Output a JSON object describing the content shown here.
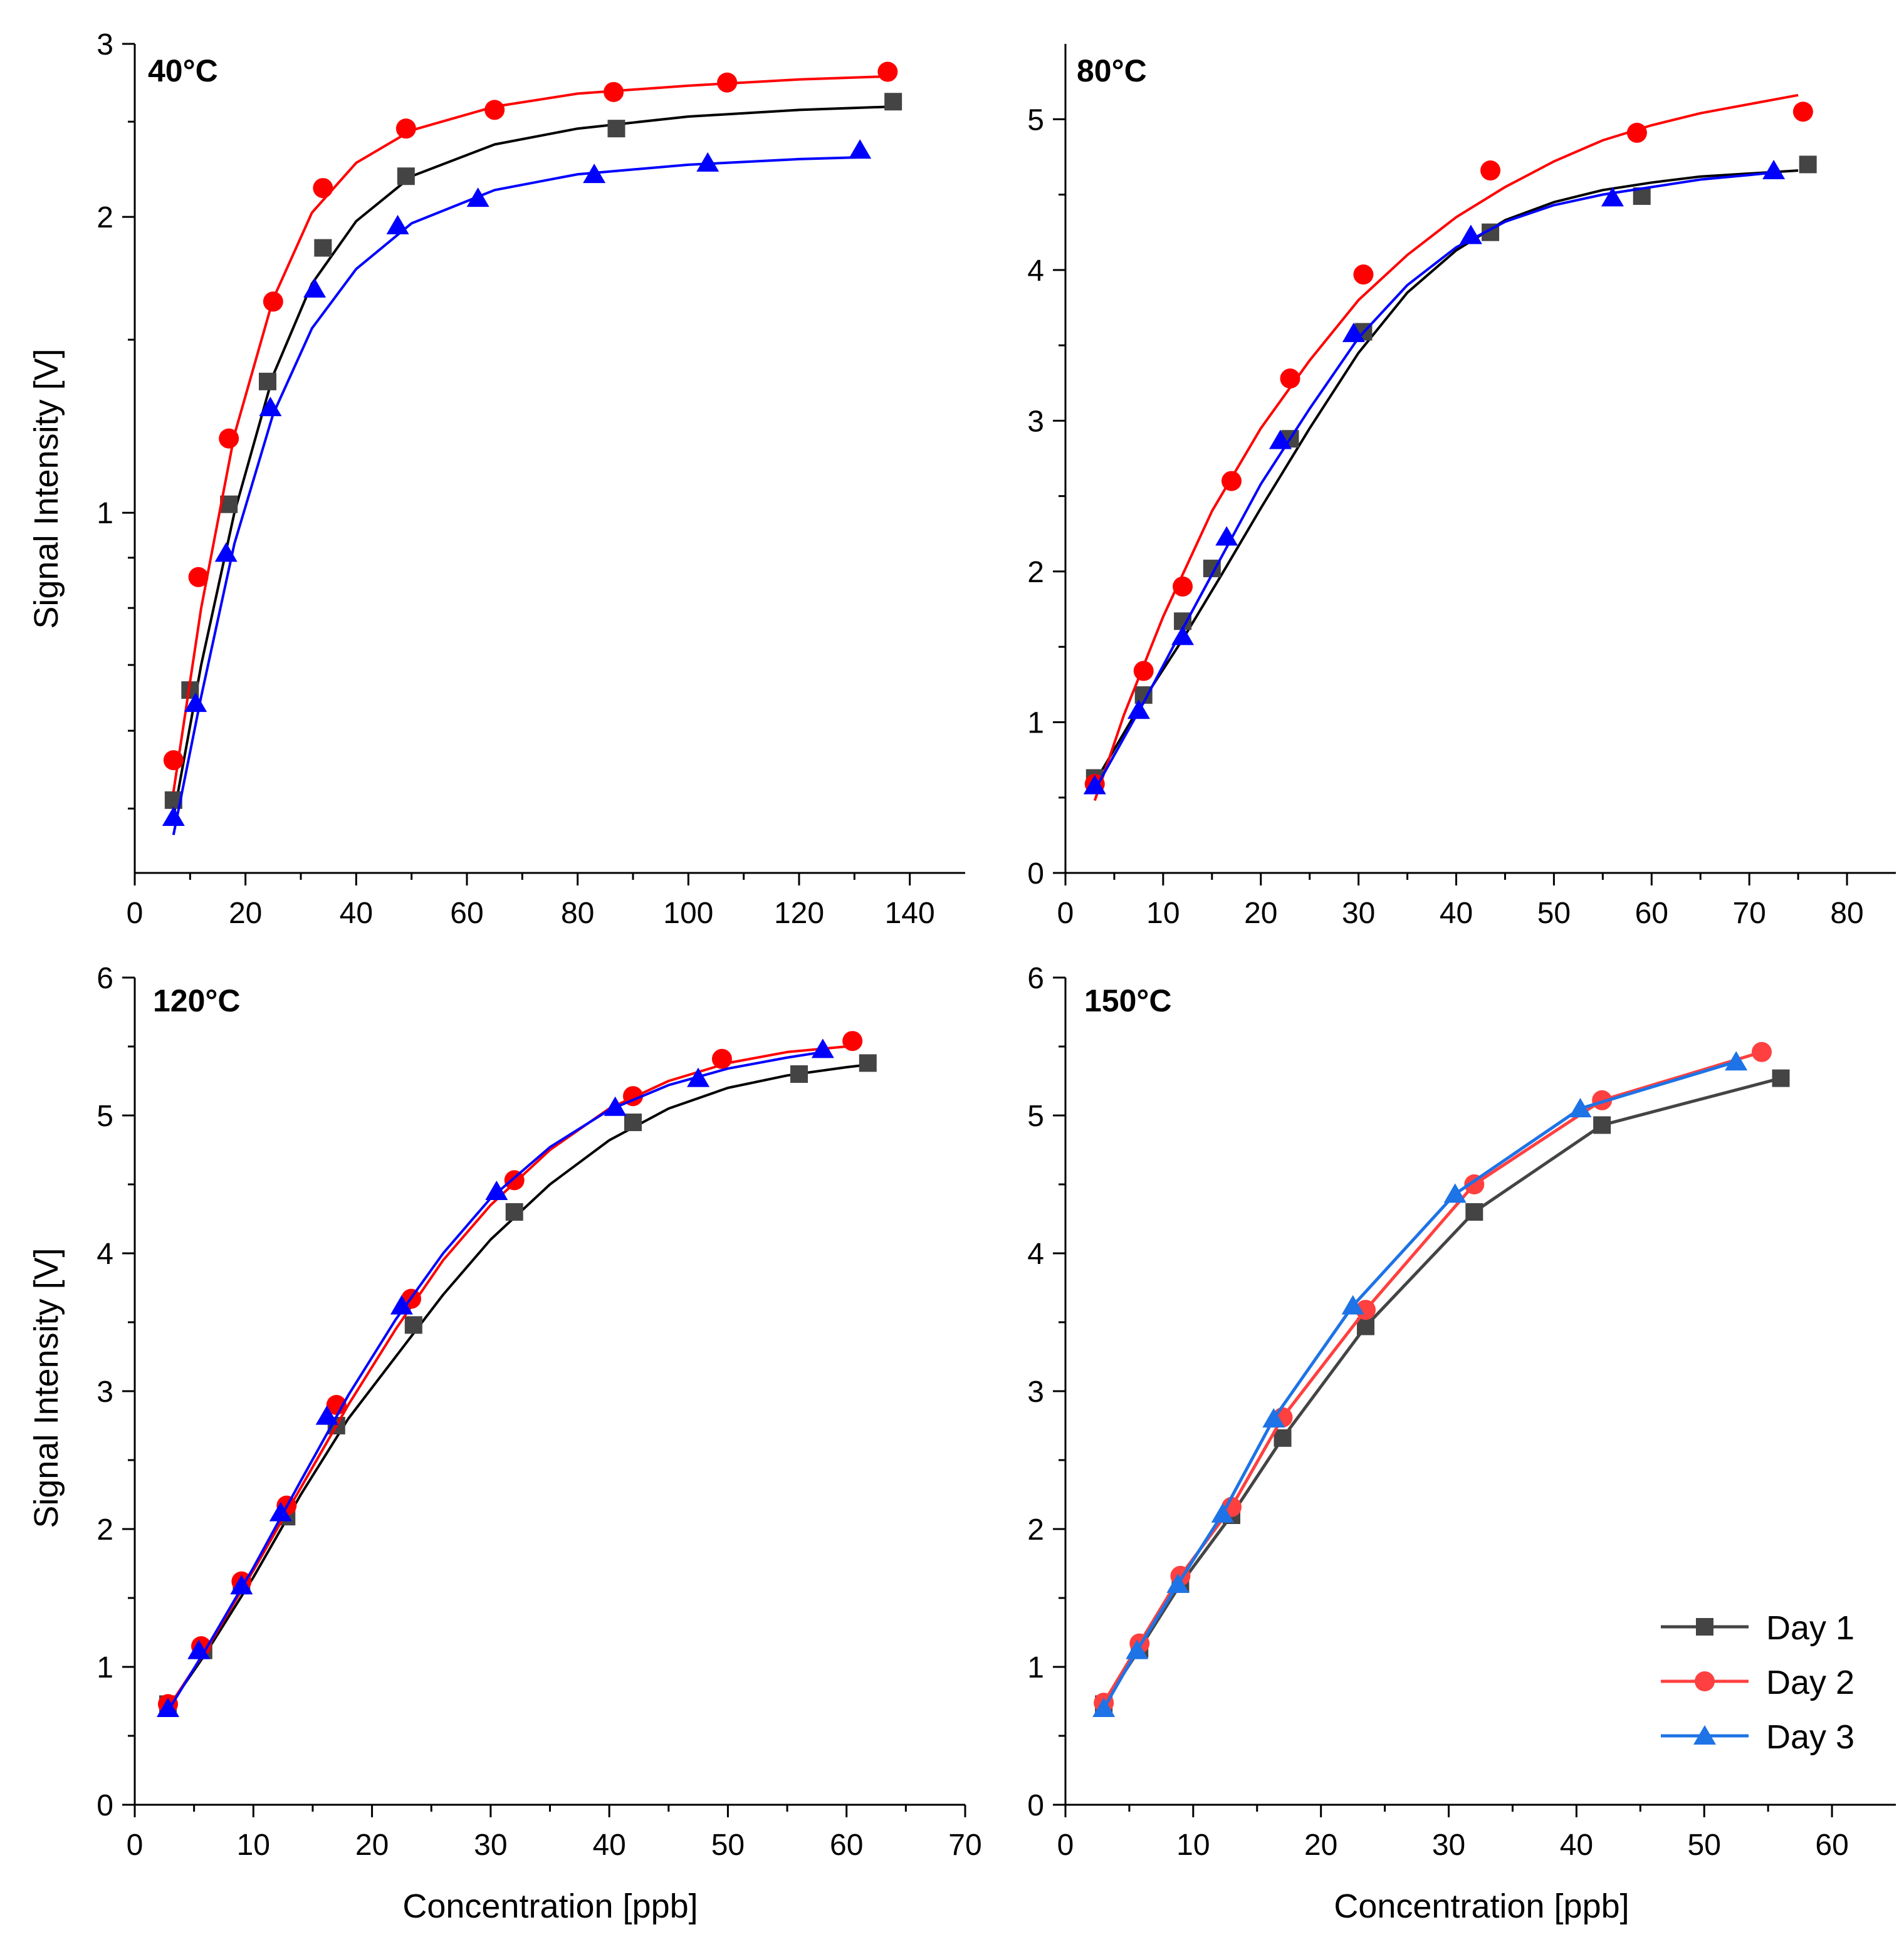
{
  "chart_data": [
    {
      "type": "scatter",
      "panel": "40°C",
      "xlabel": "",
      "ylabel": "Signal Intensity [V]",
      "yscale": "log",
      "xlim": [
        0,
        150
      ],
      "ylim": [
        0.43,
        3
      ],
      "xticks": [
        0,
        20,
        40,
        60,
        80,
        100,
        120,
        140
      ],
      "yticks": [
        1,
        2,
        3
      ],
      "series": [
        {
          "name": "Day 1",
          "color": "#444444",
          "marker": "square",
          "fit_color": "#000000",
          "x": [
            7,
            10,
            17,
            24,
            34,
            49,
            87,
            137
          ],
          "y": [
            0.51,
            0.66,
            1.02,
            1.36,
            1.86,
            2.2,
            2.46,
            2.62
          ],
          "fit": [
            [
              7,
              0.49
            ],
            [
              12,
              0.7
            ],
            [
              18,
              1.0
            ],
            [
              25,
              1.38
            ],
            [
              32,
              1.71
            ],
            [
              40,
              1.98
            ],
            [
              50,
              2.2
            ],
            [
              65,
              2.37
            ],
            [
              80,
              2.46
            ],
            [
              100,
              2.53
            ],
            [
              120,
              2.57
            ],
            [
              137,
              2.59
            ]
          ]
        },
        {
          "name": "Day 2",
          "color": "#ff0000",
          "marker": "circle",
          "fit_color": "#ff0000",
          "x": [
            7,
            11.5,
            17,
            25,
            34,
            49,
            65,
            86.5,
            107,
            136
          ],
          "y": [
            0.56,
            0.86,
            1.19,
            1.64,
            2.14,
            2.46,
            2.57,
            2.68,
            2.74,
            2.81
          ],
          "fit": [
            [
              7,
              0.52
            ],
            [
              12,
              0.8
            ],
            [
              18,
              1.2
            ],
            [
              25,
              1.65
            ],
            [
              32,
              2.02
            ],
            [
              40,
              2.27
            ],
            [
              50,
              2.45
            ],
            [
              65,
              2.59
            ],
            [
              80,
              2.67
            ],
            [
              100,
              2.72
            ],
            [
              120,
              2.76
            ],
            [
              136,
              2.78
            ]
          ]
        },
        {
          "name": "Day 3",
          "color": "#0000ff",
          "marker": "triangle",
          "fit_color": "#0000ff",
          "x": [
            7,
            11,
            16.5,
            24.5,
            32.5,
            47.5,
            62,
            83,
            103.5,
            131
          ],
          "y": [
            0.49,
            0.64,
            0.91,
            1.28,
            1.69,
            1.96,
            2.09,
            2.21,
            2.27,
            2.34
          ],
          "fit": [
            [
              7,
              0.47
            ],
            [
              12,
              0.65
            ],
            [
              18,
              0.93
            ],
            [
              25,
              1.26
            ],
            [
              32,
              1.54
            ],
            [
              40,
              1.77
            ],
            [
              50,
              1.97
            ],
            [
              65,
              2.13
            ],
            [
              80,
              2.21
            ],
            [
              100,
              2.26
            ],
            [
              120,
              2.29
            ],
            [
              131,
              2.3
            ]
          ]
        }
      ]
    },
    {
      "type": "scatter",
      "panel": "80°C",
      "xlabel": "",
      "ylabel": "",
      "xlim": [
        0,
        85
      ],
      "ylim": [
        0,
        5.5
      ],
      "xticks": [
        0,
        10,
        20,
        30,
        40,
        50,
        60,
        70,
        80
      ],
      "yticks": [
        0,
        1,
        2,
        3,
        4,
        5
      ],
      "series": [
        {
          "name": "Day 1",
          "color": "#444444",
          "marker": "square",
          "fit_color": "#000000",
          "x": [
            3,
            8,
            12,
            15,
            23,
            30.5,
            43.5,
            59,
            76
          ],
          "y": [
            0.63,
            1.18,
            1.67,
            2.02,
            2.88,
            3.59,
            4.25,
            4.49,
            4.7
          ],
          "fit": [
            [
              3,
              0.6
            ],
            [
              8,
              1.15
            ],
            [
              12,
              1.55
            ],
            [
              16,
              1.98
            ],
            [
              20,
              2.42
            ],
            [
              25,
              2.95
            ],
            [
              30,
              3.45
            ],
            [
              35,
              3.85
            ],
            [
              40,
              4.13
            ],
            [
              45,
              4.33
            ],
            [
              50,
              4.45
            ],
            [
              55,
              4.53
            ],
            [
              60,
              4.58
            ],
            [
              65,
              4.62
            ],
            [
              70,
              4.64
            ],
            [
              75,
              4.66
            ]
          ]
        },
        {
          "name": "Day 2",
          "color": "#ff0000",
          "marker": "circle",
          "fit_color": "#ff0000",
          "x": [
            3,
            8,
            12,
            17,
            23,
            30.5,
            43.5,
            58.5,
            75.5
          ],
          "y": [
            0.59,
            1.34,
            1.9,
            2.6,
            3.28,
            3.97,
            4.66,
            4.91,
            5.05
          ],
          "fit": [
            [
              3,
              0.48
            ],
            [
              6,
              1.05
            ],
            [
              10,
              1.7
            ],
            [
              15,
              2.4
            ],
            [
              20,
              2.95
            ],
            [
              25,
              3.4
            ],
            [
              30,
              3.8
            ],
            [
              35,
              4.1
            ],
            [
              40,
              4.35
            ],
            [
              45,
              4.55
            ],
            [
              50,
              4.72
            ],
            [
              55,
              4.86
            ],
            [
              60,
              4.96
            ],
            [
              65,
              5.04
            ],
            [
              70,
              5.1
            ],
            [
              75,
              5.16
            ]
          ]
        },
        {
          "name": "Day 3",
          "color": "#0000ff",
          "marker": "triangle",
          "fit_color": "#0000ff",
          "x": [
            3,
            7.5,
            12,
            16.5,
            22,
            29.5,
            41.5,
            56,
            72.5
          ],
          "y": [
            0.58,
            1.08,
            1.57,
            2.23,
            2.87,
            3.58,
            4.23,
            4.48,
            4.66
          ],
          "fit": [
            [
              3,
              0.55
            ],
            [
              8,
              1.13
            ],
            [
              12,
              1.62
            ],
            [
              16,
              2.1
            ],
            [
              20,
              2.58
            ],
            [
              25,
              3.08
            ],
            [
              30,
              3.55
            ],
            [
              35,
              3.9
            ],
            [
              40,
              4.15
            ],
            [
              45,
              4.32
            ],
            [
              50,
              4.43
            ],
            [
              55,
              4.5
            ],
            [
              60,
              4.55
            ],
            [
              65,
              4.6
            ],
            [
              70,
              4.63
            ],
            [
              73,
              4.65
            ]
          ]
        }
      ]
    },
    {
      "type": "scatter",
      "panel": "120°C",
      "xlabel": "Concentration [ppb]",
      "ylabel": "Signal Intensity [V]",
      "xlim": [
        0,
        70
      ],
      "ylim": [
        0,
        6
      ],
      "xticks": [
        0,
        10,
        20,
        30,
        40,
        50,
        60,
        70
      ],
      "yticks": [
        0,
        1,
        2,
        3,
        4,
        5,
        6
      ],
      "series": [
        {
          "name": "Day 1",
          "color": "#444444",
          "marker": "square",
          "fit_color": "#000000",
          "x": [
            2.8,
            5.8,
            9,
            12.8,
            17,
            23.5,
            32,
            42,
            56,
            61.8
          ],
          "y": [
            0.73,
            1.12,
            1.59,
            2.09,
            2.75,
            3.48,
            4.3,
            4.95,
            5.3,
            5.38
          ],
          "fit": [
            [
              2.8,
              0.7
            ],
            [
              6,
              1.1
            ],
            [
              10,
              1.65
            ],
            [
              14,
              2.25
            ],
            [
              18,
              2.8
            ],
            [
              22,
              3.25
            ],
            [
              26,
              3.7
            ],
            [
              30,
              4.1
            ],
            [
              35,
              4.5
            ],
            [
              40,
              4.82
            ],
            [
              45,
              5.05
            ],
            [
              50,
              5.2
            ],
            [
              55,
              5.29
            ],
            [
              60,
              5.35
            ],
            [
              62,
              5.37
            ]
          ]
        },
        {
          "name": "Day 2",
          "color": "#ff0000",
          "marker": "circle",
          "fit_color": "#ff0000",
          "x": [
            2.8,
            5.6,
            9,
            12.8,
            17,
            23.3,
            32,
            42,
            49.5,
            60.5
          ],
          "y": [
            0.73,
            1.15,
            1.62,
            2.17,
            2.9,
            3.67,
            4.53,
            5.14,
            5.41,
            5.54
          ],
          "fit": [
            [
              2.8,
              0.7
            ],
            [
              6,
              1.12
            ],
            [
              10,
              1.7
            ],
            [
              14,
              2.3
            ],
            [
              18,
              2.9
            ],
            [
              22,
              3.45
            ],
            [
              26,
              3.95
            ],
            [
              30,
              4.35
            ],
            [
              35,
              4.75
            ],
            [
              40,
              5.05
            ],
            [
              45,
              5.25
            ],
            [
              50,
              5.38
            ],
            [
              55,
              5.46
            ],
            [
              60,
              5.5
            ]
          ]
        },
        {
          "name": "Day 3",
          "color": "#0000ff",
          "marker": "triangle",
          "fit_color": "#0000ff",
          "x": [
            2.8,
            5.4,
            9,
            12.3,
            16.2,
            22.5,
            30.5,
            40.5,
            47.5,
            58
          ],
          "y": [
            0.7,
            1.12,
            1.59,
            2.12,
            2.82,
            3.62,
            4.45,
            5.06,
            5.27,
            5.48
          ],
          "fit": [
            [
              2.8,
              0.68
            ],
            [
              6,
              1.13
            ],
            [
              10,
              1.72
            ],
            [
              14,
              2.35
            ],
            [
              18,
              2.97
            ],
            [
              22,
              3.52
            ],
            [
              26,
              4.0
            ],
            [
              30,
              4.4
            ],
            [
              35,
              4.77
            ],
            [
              40,
              5.04
            ],
            [
              45,
              5.22
            ],
            [
              50,
              5.34
            ],
            [
              55,
              5.42
            ],
            [
              58,
              5.46
            ]
          ]
        }
      ]
    },
    {
      "type": "line",
      "panel": "150°C",
      "xlabel": "Concentration [ppb]",
      "ylabel": "",
      "xlim": [
        0,
        65
      ],
      "ylim": [
        0,
        6
      ],
      "xticks": [
        0,
        10,
        20,
        30,
        40,
        50,
        60
      ],
      "yticks": [
        0,
        1,
        2,
        3,
        4,
        5,
        6
      ],
      "legend": {
        "position": "bottom-right",
        "entries": [
          "Day 1",
          "Day 2",
          "Day 3"
        ]
      },
      "series": [
        {
          "name": "Day 1",
          "color": "#444444",
          "marker": "square",
          "x": [
            3,
            5.8,
            9,
            13,
            17,
            23.5,
            32,
            42,
            56
          ],
          "y": [
            0.73,
            1.13,
            1.6,
            2.1,
            2.66,
            3.47,
            4.3,
            4.93,
            5.27
          ]
        },
        {
          "name": "Day 2",
          "color": "#ff4040",
          "marker": "circle",
          "x": [
            3,
            5.8,
            9,
            13,
            17,
            23.5,
            32,
            42,
            54.5
          ],
          "y": [
            0.74,
            1.17,
            1.66,
            2.16,
            2.81,
            3.59,
            4.5,
            5.11,
            5.46
          ]
        },
        {
          "name": "Day 3",
          "color": "#1e73e6",
          "marker": "triangle",
          "x": [
            3,
            5.6,
            8.8,
            12.3,
            16.3,
            22.5,
            30.5,
            40.3,
            52.5
          ],
          "y": [
            0.7,
            1.12,
            1.6,
            2.11,
            2.8,
            3.62,
            4.43,
            5.05,
            5.39
          ]
        }
      ]
    }
  ]
}
